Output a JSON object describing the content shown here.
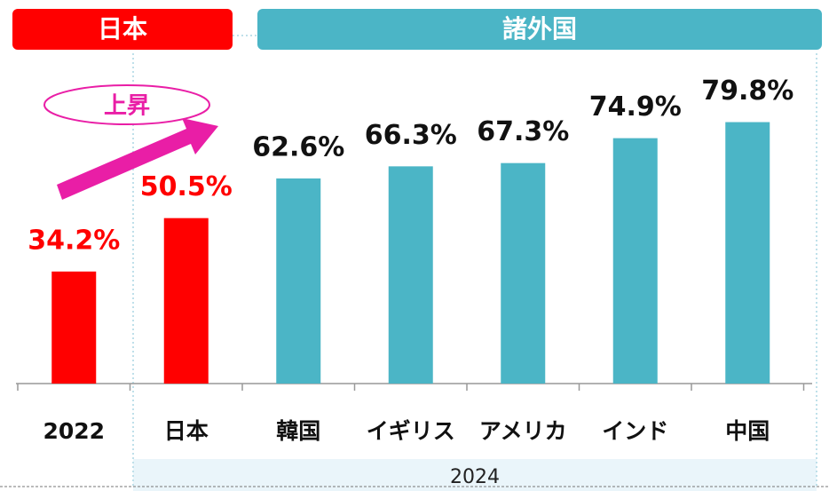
{
  "chart_data": {
    "type": "bar",
    "groups": [
      "日本",
      "諸外国"
    ],
    "annotation": "上昇",
    "group_label": "2024",
    "categories": [
      "2022",
      "日本",
      "韓国",
      "イギリス",
      "アメリカ",
      "インド",
      "中国"
    ],
    "values": [
      34.2,
      50.5,
      62.6,
      66.3,
      67.3,
      74.9,
      79.8
    ],
    "value_labels": [
      "34.2%",
      "50.5%",
      "62.6%",
      "66.3%",
      "67.3%",
      "74.9%",
      "79.8%"
    ],
    "colors": [
      "#ff0000",
      "#ff0000",
      "#4bb5c6",
      "#4bb5c6",
      "#4bb5c6",
      "#4bb5c6",
      "#4bb5c6"
    ],
    "label_colors": [
      "#ff0000",
      "#ff0000",
      "#111111",
      "#111111",
      "#111111",
      "#111111",
      "#111111"
    ]
  }
}
